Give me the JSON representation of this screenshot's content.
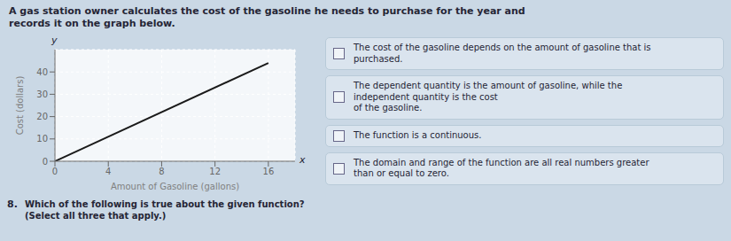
{
  "chart_data": {
    "type": "line",
    "title": "A gas station owner calculates the cost of the gasoline he needs to purchase for the year and\nrecords it on the graph below.",
    "x_label": "Amount of Gasoline (gallons)",
    "y_label": "Cost (dollars)",
    "x": [
      0,
      16
    ],
    "values": [
      0,
      44
    ],
    "color": "#1a1a1a",
    "xlim": [
      0,
      18
    ],
    "ylim": [
      0,
      50
    ],
    "xticks": [
      0,
      4,
      8,
      12,
      16
    ],
    "yticks": [
      0,
      10,
      20,
      30,
      40
    ],
    "grid": true,
    "annotations": [
      "y",
      "x"
    ],
    "question_number": "8.",
    "question": "Which of the following is true about the given function? (Select all three that apply.)",
    "options": [
      "The cost of the gasoline depends on the amount of gasoline that is\npurchased.",
      "The dependent quantity is the amount of gasoline, while the\nindependent quantity is the cost\nof the gasoline.",
      "The function is a continuous.",
      "The domain and range of the function are all real numbers greater\nthan or equal to zero."
    ]
  }
}
